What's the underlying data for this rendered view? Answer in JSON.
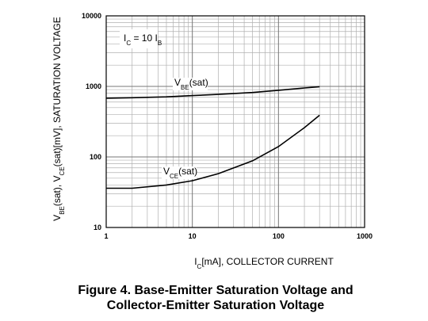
{
  "chart_data": {
    "type": "line",
    "caption": [
      "Figure 4. Base-Emitter Saturation Voltage and",
      "Collector-Emitter Saturation Voltage"
    ],
    "xlabel": [
      "I",
      "C",
      "[mA], COLLECTOR CURRENT"
    ],
    "ylabel": [
      "V",
      "BE",
      "(sat), V",
      "CE",
      "(sat)[mV], SATURATION VOLTAGE"
    ],
    "annotation": [
      "I",
      "C",
      " = 10 I",
      "B"
    ],
    "xscale": "log",
    "yscale": "log",
    "xlim": [
      1,
      1000
    ],
    "ylim": [
      10,
      10000
    ],
    "xticks": [
      1,
      10,
      100,
      1000
    ],
    "yticks": [
      10,
      100,
      1000,
      10000
    ],
    "grid": true,
    "series": [
      {
        "name": [
          "V",
          "BE",
          "(sat)"
        ],
        "color": "#000000",
        "x": [
          1,
          2,
          5,
          10,
          20,
          50,
          100,
          200,
          300
        ],
        "values": [
          680,
          690,
          710,
          740,
          770,
          820,
          880,
          950,
          990
        ]
      },
      {
        "name": [
          "V",
          "CE",
          "(sat)"
        ],
        "color": "#000000",
        "x": [
          1,
          2,
          5,
          10,
          20,
          50,
          100,
          200,
          300
        ],
        "values": [
          36,
          36,
          40,
          46,
          58,
          88,
          140,
          260,
          390
        ]
      }
    ]
  }
}
